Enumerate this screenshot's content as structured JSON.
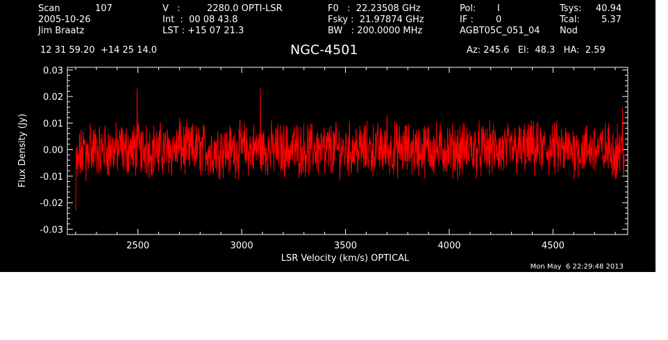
{
  "header": {
    "scan_label": "Scan",
    "scan_value": "107",
    "date": "2005-10-26",
    "observer": "Jim Braatz",
    "v_label": "V   :",
    "v_value": "2280.0 OPTI-LSR",
    "int_text": "Int  :  00 08 43.8",
    "lst_text": "LST : +15 07 21.3",
    "f0_text": "F0   :  22.23508 GHz",
    "fsky_text": "Fsky :  21.97874 GHz",
    "bw_text": "BW   : 200.0000 MHz",
    "pol_label": "Pol:",
    "pol_value": "I",
    "if_label": "IF :",
    "if_value": "0",
    "project": "AGBT05C_051_04",
    "tsys_label": "Tsys:",
    "tsys_value": "40.94",
    "tcal_label": "Tcal:",
    "tcal_value": "5.37",
    "mode": "Nod",
    "coords": "12 31 59.20  +14 25 14.0",
    "source": "NGC-4501",
    "azelha": "Az: 245.6   El:  48.3   HA:  2.59"
  },
  "timestamp": "Mon May  6 22:29:48 2013",
  "colors": {
    "background": "#000000",
    "axes": "#ffffff",
    "trace": "#ff0000"
  },
  "chart_data": {
    "type": "line",
    "title": "NGC-4501",
    "xlabel": "LSR Velocity (km/s) OPTICAL",
    "ylabel": "Flux Density (Jy)",
    "xlim": [
      2160,
      4860
    ],
    "ylim": [
      -0.032,
      0.031
    ],
    "xticks": [
      2500,
      3000,
      3500,
      4000,
      4500
    ],
    "yticks": [
      -0.03,
      -0.02,
      -0.01,
      0.0,
      0.01,
      0.02,
      0.03
    ],
    "ytick_labels": [
      "-0.03",
      "-0.02",
      "-0.01",
      "0.00",
      "0.01",
      "0.02",
      "0.03"
    ],
    "series": [
      {
        "x": [
          2200,
          2210,
          2220,
          2230,
          2240,
          2250,
          2260,
          2270,
          2280,
          2300,
          2320,
          2340,
          2360,
          2380,
          2400,
          2420,
          2440,
          2460,
          2480,
          2496,
          2500,
          2520,
          2540,
          2560,
          2580,
          2600,
          2650,
          2700,
          2750,
          2800,
          2850,
          2900,
          2950,
          3000,
          3050,
          3080,
          3090,
          3100,
          3150,
          3200,
          3250,
          3300,
          3350,
          3400,
          3450,
          3500,
          3550,
          3600,
          3650,
          3700,
          3750,
          3800,
          3850,
          3900,
          3950,
          4000,
          4050,
          4100,
          4150,
          4200,
          4250,
          4300,
          4350,
          4400,
          4450,
          4500,
          4550,
          4600,
          4650,
          4700,
          4750,
          4800,
          4820,
          4835,
          4845
        ],
        "y": [
          -0.023,
          -0.01,
          0.006,
          -0.008,
          0.004,
          -0.012,
          0.002,
          0.01,
          -0.006,
          0.004,
          -0.008,
          0.006,
          -0.01,
          0.003,
          -0.005,
          0.008,
          -0.004,
          0.002,
          -0.006,
          0.023,
          0.001,
          -0.007,
          0.009,
          -0.003,
          0.005,
          -0.008,
          0.004,
          0.012,
          -0.006,
          0.003,
          -0.009,
          0.006,
          -0.002,
          0.008,
          -0.005,
          0.004,
          0.023,
          -0.006,
          0.005,
          -0.008,
          0.007,
          -0.004,
          0.003,
          -0.009,
          0.006,
          -0.002,
          0.008,
          -0.006,
          0.004,
          0.013,
          -0.007,
          0.005,
          -0.003,
          0.009,
          -0.006,
          0.004,
          -0.01,
          0.007,
          -0.004,
          0.006,
          -0.008,
          0.003,
          -0.005,
          0.009,
          -0.006,
          0.004,
          -0.007,
          0.005,
          -0.003,
          0.008,
          -0.005,
          -0.011,
          0.006,
          0.016,
          -0.005
        ]
      }
    ]
  }
}
